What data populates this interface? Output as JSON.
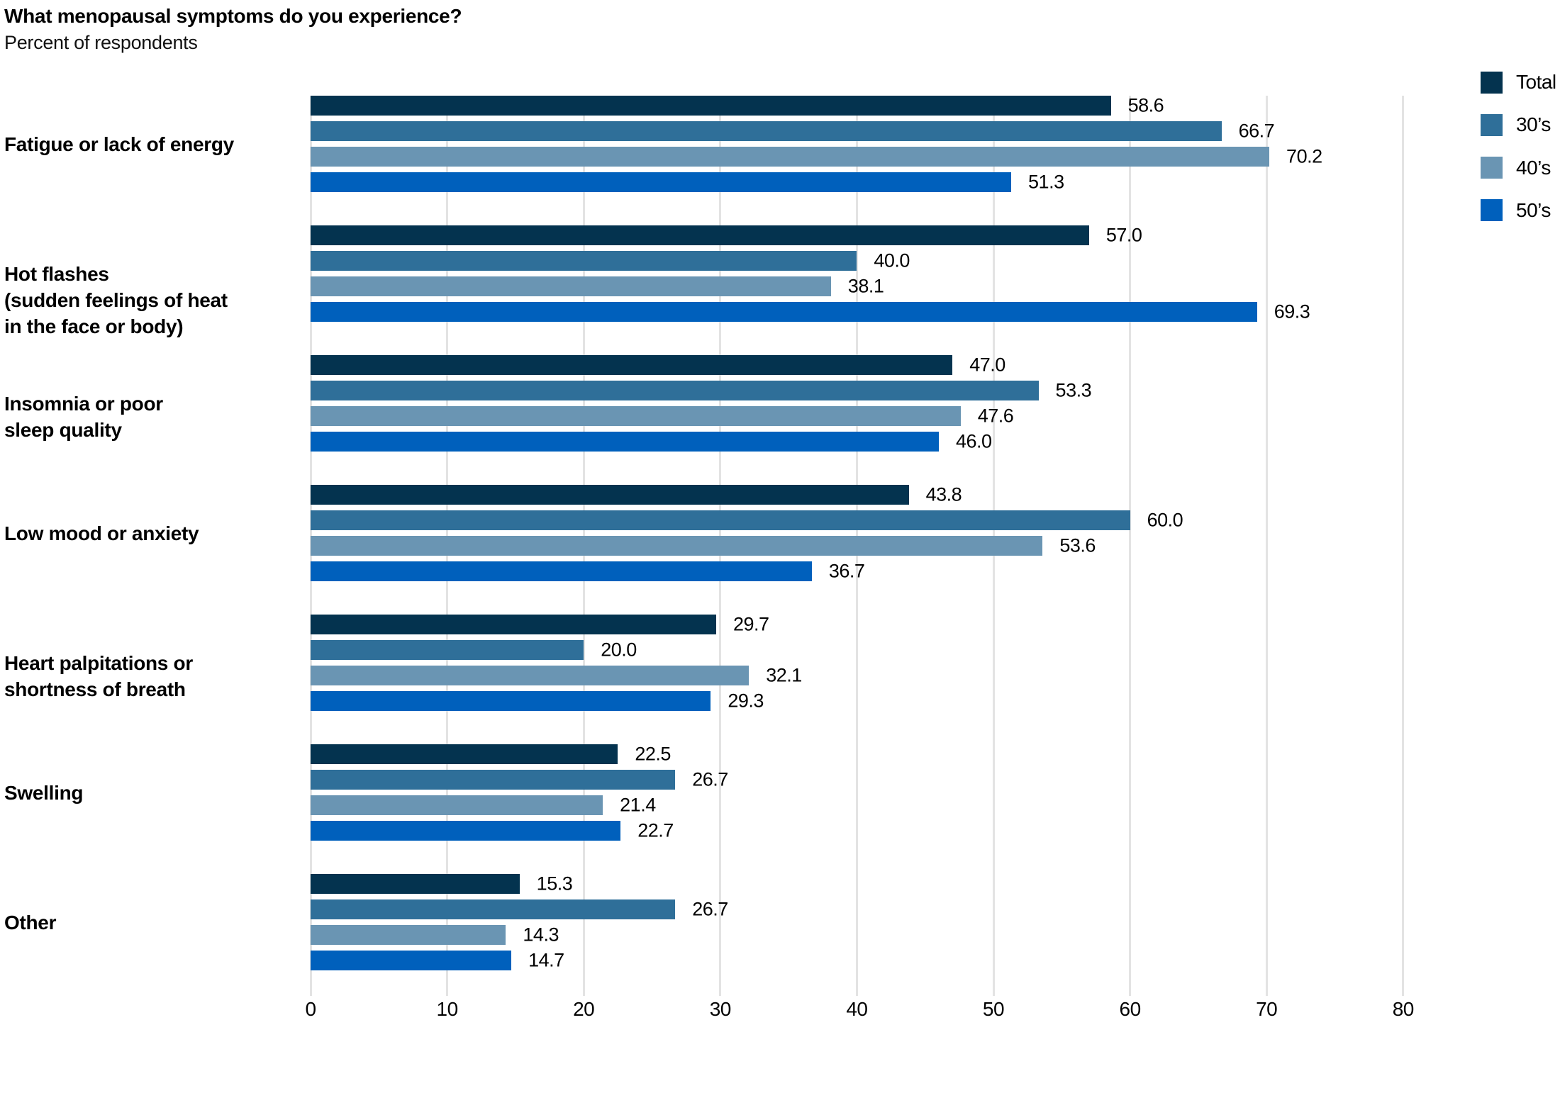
{
  "title": "What menopausal symptoms do you experience?",
  "subtitle": "Percent of respondents",
  "chart_data": {
    "type": "bar",
    "orientation": "horizontal",
    "title": "What menopausal symptoms do you experience?",
    "subtitle": "Percent of respondents",
    "xlabel": "",
    "ylabel": "",
    "xticks": [
      0,
      10,
      20,
      30,
      40,
      50,
      60,
      70,
      80
    ],
    "xlim": [
      0,
      81.5
    ],
    "grid": true,
    "value_labels": true,
    "value_decimals": 1,
    "legend_position": "top-right",
    "grid_color": "#e3e3e3",
    "categories": [
      "Fatigue or lack of energy",
      "Hot flashes\n(sudden feelings of heat\nin the face or body)",
      "Insomnia or poor\nsleep quality",
      "Low mood or anxiety",
      "Heart palpitations or\nshortness of breath",
      "Swelling",
      "Other"
    ],
    "series": [
      {
        "name": "Total",
        "color": "#04334F",
        "values": [
          58.6,
          57.0,
          47.0,
          43.8,
          29.7,
          22.5,
          15.3
        ]
      },
      {
        "name": "30’s",
        "color": "#2F6F99",
        "values": [
          66.7,
          40.0,
          53.3,
          60.0,
          20.0,
          26.7,
          26.7
        ]
      },
      {
        "name": "40’s",
        "color": "#6A95B3",
        "values": [
          70.2,
          38.1,
          47.6,
          53.6,
          32.1,
          21.4,
          14.3
        ]
      },
      {
        "name": "50’s",
        "color": "#0060BC",
        "values": [
          51.3,
          69.3,
          46.0,
          36.7,
          29.3,
          22.7,
          14.7
        ]
      }
    ]
  }
}
